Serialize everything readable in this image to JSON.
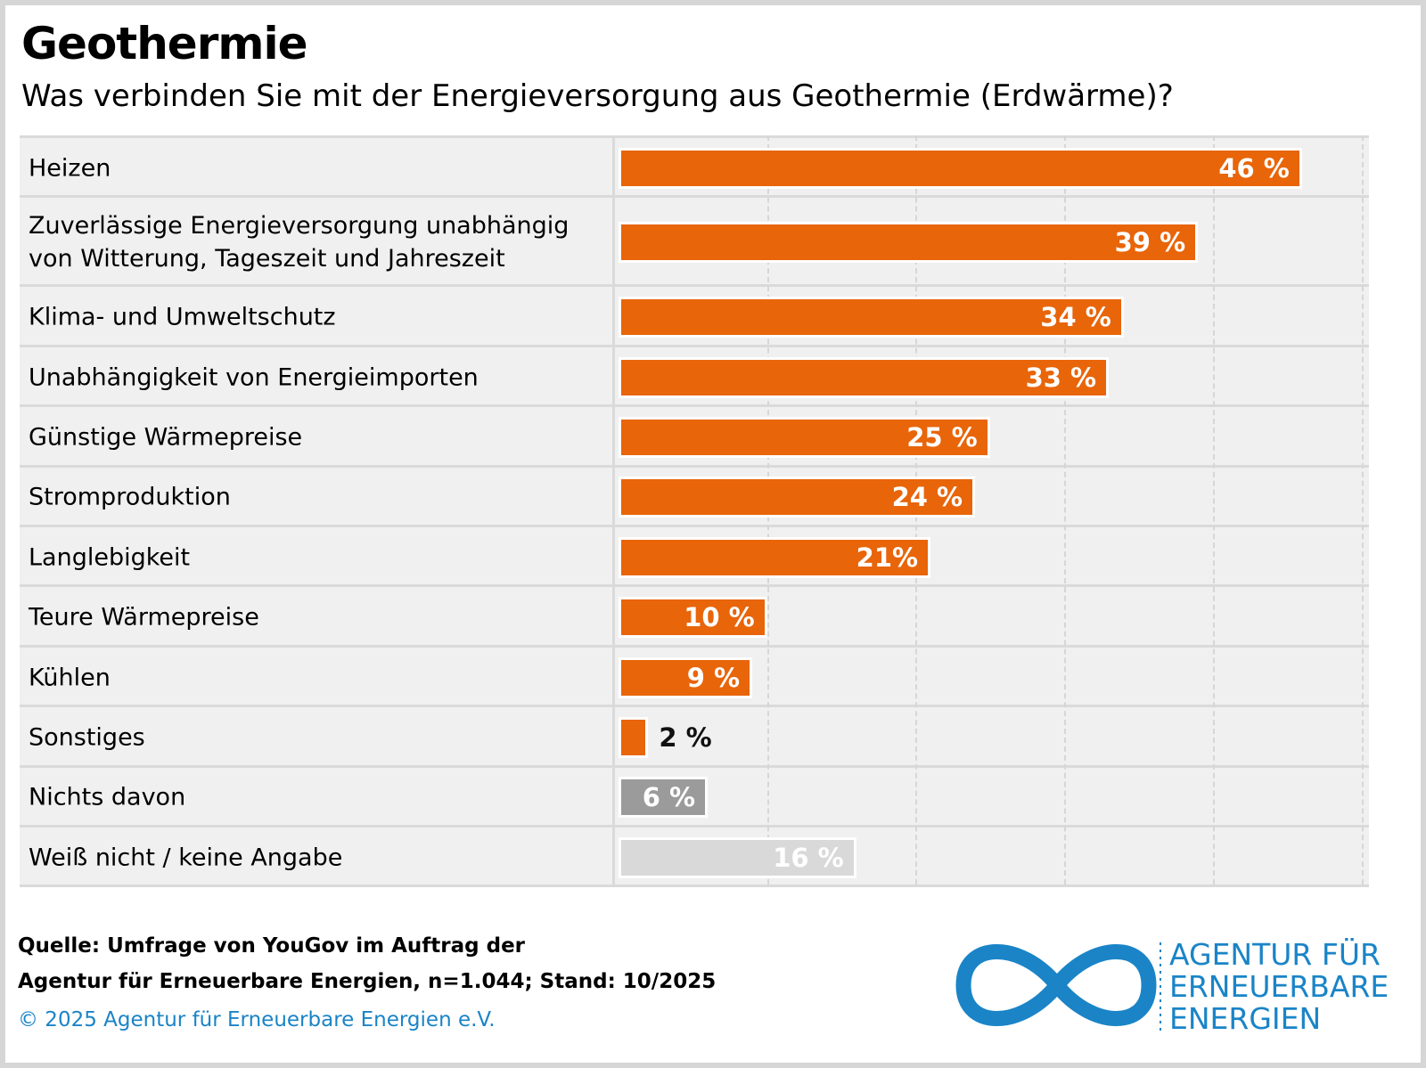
{
  "chart_data": {
    "type": "hbar",
    "title": "Geothermie",
    "subtitle": "Was verbinden Sie mit der Energieversorgung aus Geothermie (Erdwärme)?",
    "categories": [
      "Heizen",
      "Zuverlässige Energieversorgung unabhängig\nvon Witterung, Tageszeit und Jahreszeit",
      "Klima- und Umweltschutz",
      "Unabhängigkeit von Energieimporten",
      "Günstige Wärmepreise",
      "Stromproduktion",
      "Langlebigkeit",
      "Teure Wärmepreise",
      "Kühlen",
      "Sonstiges",
      "Nichts davon",
      "Weiß nicht / keine Angabe"
    ],
    "values": [
      46,
      39,
      34,
      33,
      25,
      24,
      21,
      10,
      9,
      2,
      6,
      16
    ],
    "value_labels": [
      "46 %",
      "39 %",
      "34 %",
      "33 %",
      "25 %",
      "24 %",
      "21%",
      "10 %",
      "9 %",
      "2 %",
      "6 %",
      "16 %"
    ],
    "colors": [
      "#e8650a",
      "#e8650a",
      "#e8650a",
      "#e8650a",
      "#e8650a",
      "#e8650a",
      "#e8650a",
      "#e8650a",
      "#e8650a",
      "#e8650a",
      "#9b9b9b",
      "#d9d9d9"
    ],
    "xlim": [
      0,
      50
    ],
    "xticks": [
      10,
      20,
      30,
      40,
      50
    ],
    "grid": true,
    "source": "Quelle: Umfrage von YouGov im Auftrag der\nAgentur für Erneuerbare Energien, n=1.044; Stand: 10/2025",
    "copyright": "© 2025 Agentur für Erneuerbare Energien e.V.",
    "logo": [
      "AGENTUR FÜR",
      "ERNEUERBARE",
      "ENERGIEN"
    ]
  }
}
